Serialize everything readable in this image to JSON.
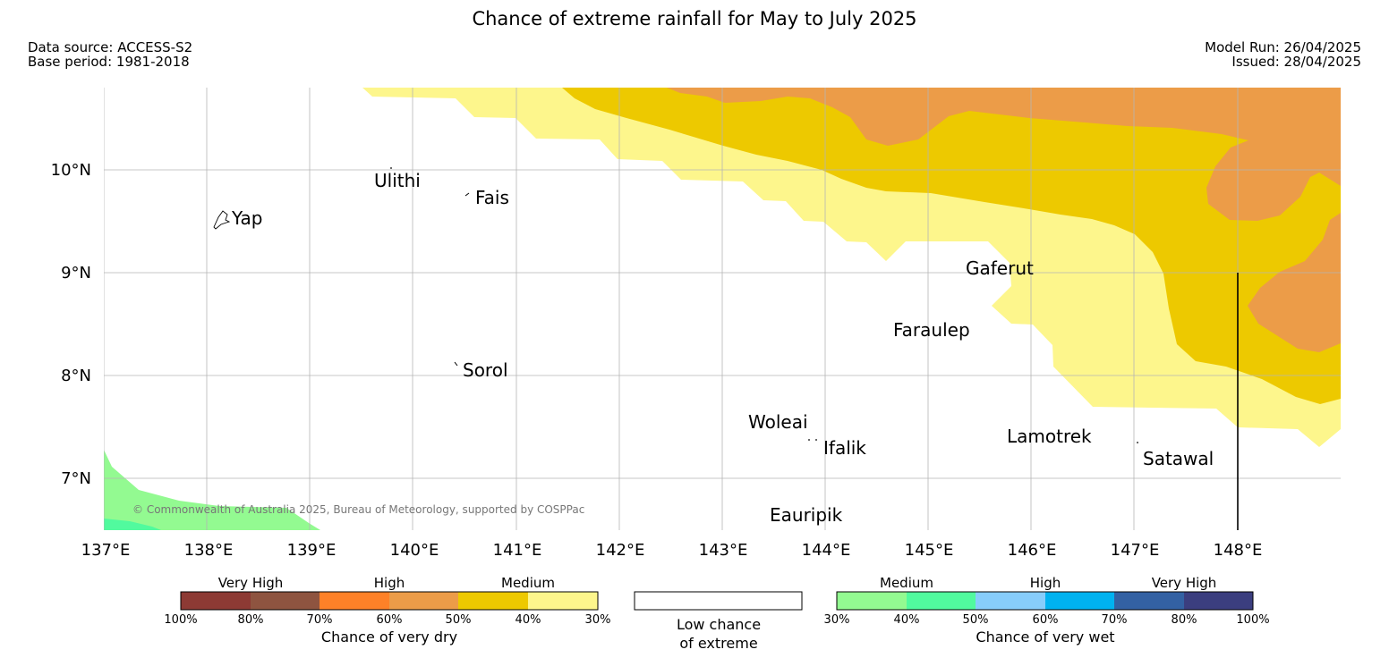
{
  "header": {
    "title": "Chance of extreme rainfall for May to July 2025",
    "data_source": "Data source: ACCESS-S2",
    "base_period": "Base period: 1981-2018",
    "model_run": "Model Run: 26/04/2025",
    "issued": "Issued: 28/04/2025"
  },
  "map": {
    "lat_labels": [
      "10°N",
      "9°N",
      "8°N",
      "7°N"
    ],
    "lon_labels": [
      "137°E",
      "138°E",
      "139°E",
      "140°E",
      "141°E",
      "142°E",
      "143°E",
      "144°E",
      "145°E",
      "146°E",
      "147°E",
      "148°E"
    ],
    "places": [
      {
        "name": "Ulithi",
        "lon": 139.84,
        "lat": 9.9
      },
      {
        "name": "Fais",
        "lon": 140.52,
        "lat": 9.77
      },
      {
        "name": "Yap",
        "lon": 138.13,
        "lat": 9.5
      },
      {
        "name": "Gaferut",
        "lon": 145.67,
        "lat": 9.0
      },
      {
        "name": "Faraulep",
        "lon": 144.53,
        "lat": 8.45
      },
      {
        "name": "Sorol",
        "lon": 140.38,
        "lat": 8.1
      },
      {
        "name": "Woleai",
        "lon": 143.9,
        "lat": 7.55
      },
      {
        "name": "Ifalik",
        "lon": 144.45,
        "lat": 7.3
      },
      {
        "name": "Lamotrek",
        "lon": 146.37,
        "lat": 7.42
      },
      {
        "name": "Satawal",
        "lon": 147.03,
        "lat": 7.22
      },
      {
        "name": "Eauripik",
        "lon": 143.08,
        "lat": 6.62
      }
    ],
    "copyright": "© Commonwealth of Australia 2025, Bureau of Meteorology, supported by COSPPac",
    "colors": {
      "dry_40_50": "#edc900",
      "dry_50_60": "#ec9c48",
      "dry_30_40": "#fdf68c",
      "wet_30_40": "#93fa91",
      "wet_40_50": "#51fa9e"
    }
  },
  "legend": {
    "dry": {
      "categories": [
        "Very High",
        "High",
        "Medium"
      ],
      "ticks": [
        "100%",
        "80%",
        "70%",
        "60%",
        "50%",
        "40%",
        "30%"
      ],
      "colors": [
        "#8d3a34",
        "#8e5440",
        "#fe8128",
        "#ec9c48",
        "#edc900",
        "#fdf68c"
      ],
      "title": "Chance of very dry"
    },
    "low": {
      "line1": "Low chance",
      "line2": "of extreme",
      "color": "#ffffff"
    },
    "wet": {
      "categories": [
        "Medium",
        "High",
        "Very High"
      ],
      "ticks": [
        "30%",
        "40%",
        "50%",
        "60%",
        "70%",
        "80%",
        "100%"
      ],
      "colors": [
        "#93fa91",
        "#51fa9e",
        "#87cdfb",
        "#00b2f0",
        "#3361a3",
        "#3b3e7f"
      ],
      "title": "Chance of very wet"
    }
  }
}
